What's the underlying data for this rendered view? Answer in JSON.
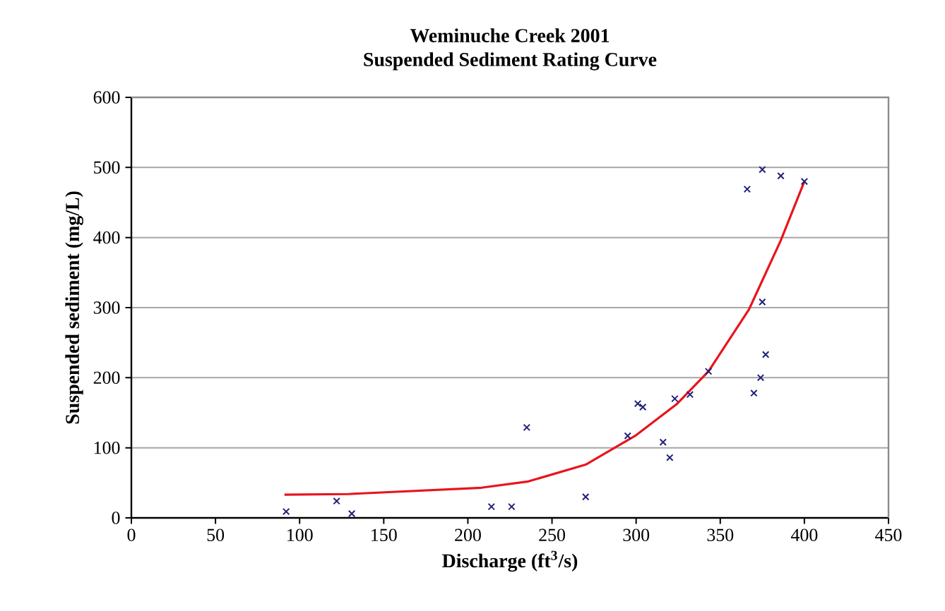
{
  "chart_data": {
    "type": "scatter",
    "title": "Weminuche Creek 2001\nSuspended Sediment Rating Curve",
    "xlabel": "Discharge (ft$^{3}$/s)",
    "ylabel": "Suspended sediment (mg/L)",
    "xlim": [
      0,
      450
    ],
    "xticks": [
      0,
      50,
      100,
      150,
      200,
      250,
      300,
      350,
      400,
      450
    ],
    "ylim": [
      0,
      600
    ],
    "yticks": [
      0,
      100,
      200,
      300,
      400,
      500,
      600
    ],
    "grid": "y",
    "series": [
      {
        "marker": "cross",
        "color": "#1f1f7a",
        "x": [
          92,
          122,
          131,
          214,
          226,
          235,
          270,
          295,
          301,
          304,
          316,
          320,
          323,
          332,
          343,
          366,
          370,
          374,
          375,
          375,
          377,
          386,
          400
        ],
        "values": [
          9,
          24,
          6,
          16,
          16,
          129,
          30,
          117,
          163,
          158,
          108,
          86,
          170,
          176,
          209,
          469,
          178,
          200,
          497,
          308,
          233,
          488,
          480
        ]
      },
      {
        "type": "line",
        "marker": "none",
        "color": "#e8141c",
        "x": [
          91,
          129,
          208,
          236,
          270,
          300,
          324,
          343,
          367,
          386,
          400
        ],
        "values": [
          33,
          34,
          43,
          52,
          76,
          118,
          162,
          209,
          297,
          396,
          480
        ]
      }
    ]
  }
}
